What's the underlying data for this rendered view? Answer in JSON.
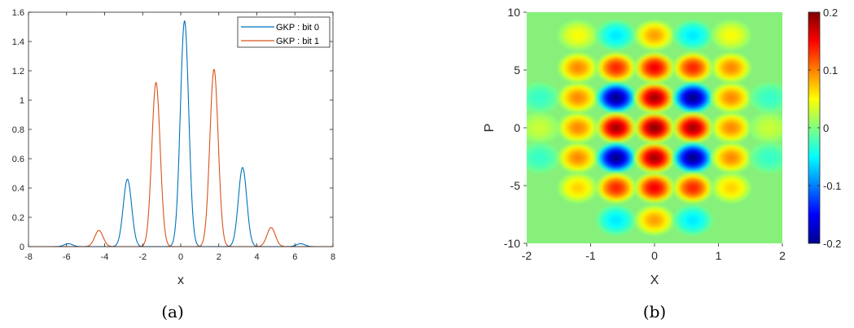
{
  "chart_data": [
    {
      "type": "line",
      "panel_caption": "(a)",
      "xlabel": "x",
      "ylabel": "",
      "xlim": [
        -8,
        8
      ],
      "ylim": [
        0,
        1.6
      ],
      "xticks": [
        -8,
        -6,
        -4,
        -2,
        0,
        2,
        4,
        6,
        8
      ],
      "yticks": [
        0,
        0.2,
        0.4,
        0.6,
        0.8,
        1,
        1.2,
        1.4,
        1.6
      ],
      "xtick_labels": [
        "-8",
        "-6",
        "-4",
        "-2",
        "0",
        "2",
        "4",
        "6",
        "8"
      ],
      "ytick_labels": [
        "0",
        "0.2",
        "0.4",
        "0.6",
        "0.8",
        "1",
        "1.2",
        "1.4",
        "1.6"
      ],
      "legend_position": "top-right",
      "series": [
        {
          "name": "GKP : bit 0",
          "color": "#0072BD",
          "peaks": [
            {
              "x": -5.9,
              "y": 0.02
            },
            {
              "x": -2.8,
              "y": 0.46
            },
            {
              "x": 0.2,
              "y": 1.54
            },
            {
              "x": 3.25,
              "y": 0.54
            },
            {
              "x": 6.3,
              "y": 0.02
            }
          ],
          "peak_width": 0.22
        },
        {
          "name": "GKP : bit 1",
          "color": "#D95319",
          "peaks": [
            {
              "x": -4.3,
              "y": 0.11
            },
            {
              "x": -1.3,
              "y": 1.12
            },
            {
              "x": 1.75,
              "y": 1.21
            },
            {
              "x": 4.75,
              "y": 0.13
            }
          ],
          "peak_width": 0.22
        }
      ]
    },
    {
      "type": "heatmap",
      "panel_caption": "(b)",
      "xlabel": "X",
      "ylabel": "P",
      "xlim": [
        -2,
        2
      ],
      "ylim": [
        -10,
        10
      ],
      "xticks": [
        -2,
        -1,
        0,
        1,
        2
      ],
      "yticks": [
        -10,
        -5,
        0,
        5,
        10
      ],
      "xtick_labels": [
        "-2",
        "-1",
        "0",
        "1",
        "2"
      ],
      "ytick_labels": [
        "-10",
        "-5",
        "0",
        "5",
        "10"
      ],
      "colormap": "jet",
      "clim": [
        -0.2,
        0.2
      ],
      "colorbar_ticks": [
        -0.2,
        -0.1,
        0,
        0.1,
        0.2
      ],
      "colorbar_tick_labels": [
        "-0.2",
        "-0.1",
        "0",
        "0.1",
        "0.2"
      ],
      "grid": {
        "x_centers": [
          -1.8,
          -1.2,
          -0.6,
          0,
          0.6,
          1.2,
          1.8
        ],
        "p_centers": [
          8,
          5.2,
          2.6,
          0,
          -2.6,
          -5.2,
          -8
        ],
        "values": [
          [
            0.0,
            0.05,
            -0.06,
            0.09,
            -0.06,
            0.05,
            0.0
          ],
          [
            0.0,
            0.1,
            0.14,
            0.16,
            0.14,
            0.1,
            0.0
          ],
          [
            -0.03,
            0.1,
            -0.2,
            0.19,
            -0.2,
            0.1,
            -0.03
          ],
          [
            0.03,
            0.1,
            0.19,
            0.2,
            0.19,
            0.1,
            0.03
          ],
          [
            -0.03,
            0.1,
            -0.2,
            0.19,
            -0.2,
            0.1,
            -0.03
          ],
          [
            0.0,
            0.07,
            0.14,
            0.16,
            0.14,
            0.07,
            0.0
          ],
          [
            0.0,
            0.0,
            -0.06,
            0.09,
            -0.06,
            0.0,
            0.0
          ]
        ],
        "spot_sigma_x": 0.13,
        "spot_sigma_p": 0.55
      }
    }
  ]
}
